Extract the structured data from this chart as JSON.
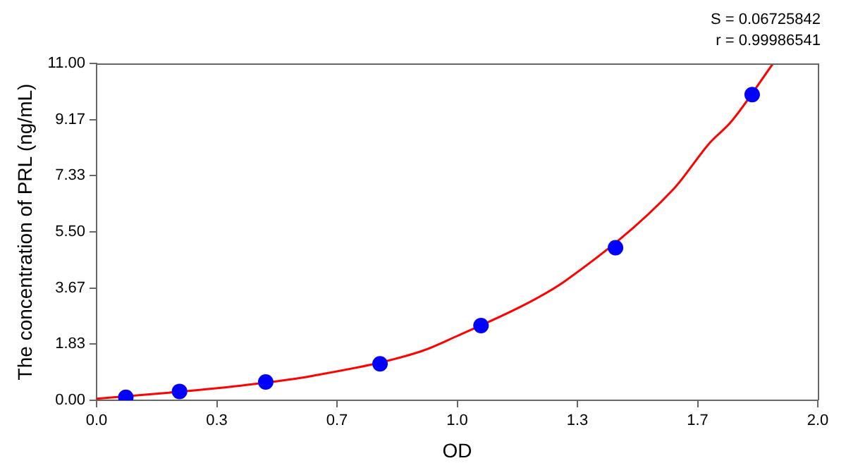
{
  "chart_data": {
    "type": "scatter",
    "xlabel": "OD",
    "ylabel": "The concentration of PRL (ng/mL)",
    "annotations": [
      "S = 0.06725842",
      "r = 0.99986541"
    ],
    "xlim": [
      0,
      2
    ],
    "ylim": [
      0,
      11
    ],
    "xticks": [
      {
        "value": 0,
        "label": "0.0"
      },
      {
        "value": 0.3333,
        "label": "0.3"
      },
      {
        "value": 0.6667,
        "label": "0.7"
      },
      {
        "value": 1,
        "label": "1.0"
      },
      {
        "value": 1.3333,
        "label": "1.3"
      },
      {
        "value": 1.6667,
        "label": "1.7"
      },
      {
        "value": 2,
        "label": "2.0"
      }
    ],
    "yticks": [
      {
        "value": 0,
        "label": "0.00"
      },
      {
        "value": 1.8333,
        "label": "1.83"
      },
      {
        "value": 3.6667,
        "label": "3.67"
      },
      {
        "value": 5.5,
        "label": "5.50"
      },
      {
        "value": 7.3333,
        "label": "7.33"
      },
      {
        "value": 9.1667,
        "label": "9.17"
      },
      {
        "value": 11,
        "label": "11.00"
      }
    ],
    "grid": false,
    "legend": false,
    "series": [
      {
        "type": "line",
        "color": "#ff0000",
        "marker": "none",
        "line_style": "solid",
        "x": [
          0,
          0.2,
          0.4,
          0.6,
          0.9,
          1.0,
          1.2,
          1.3,
          1.6,
          1.7,
          1.76,
          1.876
        ],
        "values": [
          0.05,
          0.25,
          0.48,
          0.8,
          1.6,
          2.1,
          3.2,
          3.9,
          6.9,
          8.4,
          9.1,
          11
        ]
      },
      {
        "color": "#0000ff",
        "marker": "circle",
        "x": [
          0.081,
          0.23,
          0.469,
          0.786,
          1.066,
          1.439,
          1.818
        ],
        "values": [
          0.1,
          0.29,
          0.6,
          1.19,
          2.44,
          4.98,
          9.98
        ]
      }
    ]
  }
}
